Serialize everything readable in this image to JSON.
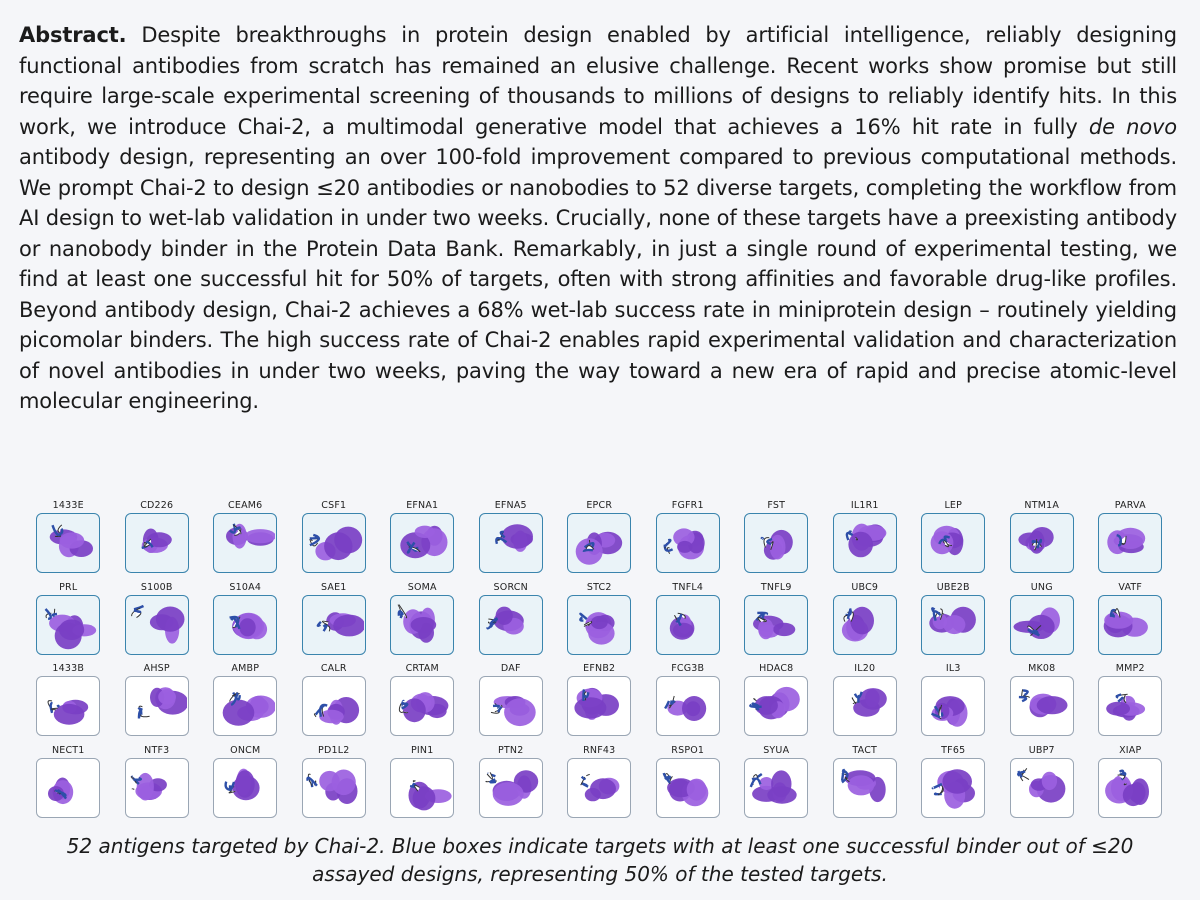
{
  "abstract": {
    "lead": "Abstract.",
    "body": " Despite breakthroughs in protein design enabled by artificial intelligence, reliably designing functional antibodies from scratch has remained an elusive challenge. Recent works show promise but still require large-scale experimental screening of thousands to millions of designs to reliably identify hits. In this work, we introduce Chai-2, a multimodal generative model that achieves a 16% hit rate in fully ",
    "emph": "de novo",
    "body2": " antibody design, representing an over 100-fold improvement compared to previous computational methods. We prompt Chai-2 to design ≤20 antibodies or nanobodies to 52 diverse targets, completing the workflow from AI design to wet-lab validation in under two weeks. Crucially, none of these targets have a preexisting antibody or nanobody binder in the Protein Data Bank. Remarkably, in just a single round of experimental testing, we find at least one successful hit for 50% of targets, often with strong affinities and favorable drug-like profiles. Beyond antibody design, Chai-2 achieves a 68% wet-lab success rate in miniprotein design – routinely yielding picomolar binders. The high success rate of Chai-2 enables rapid experimental validation and characterization of novel antibodies in under two weeks, paving the way toward a new era of rapid and precise atomic-level molecular engineering."
  },
  "targets": [
    {
      "name": "1433E",
      "hit": true
    },
    {
      "name": "CD226",
      "hit": true
    },
    {
      "name": "CEAM6",
      "hit": true
    },
    {
      "name": "CSF1",
      "hit": true
    },
    {
      "name": "EFNA1",
      "hit": true
    },
    {
      "name": "EFNA5",
      "hit": true
    },
    {
      "name": "EPCR",
      "hit": true
    },
    {
      "name": "FGFR1",
      "hit": true
    },
    {
      "name": "FST",
      "hit": true
    },
    {
      "name": "IL1R1",
      "hit": true
    },
    {
      "name": "LEP",
      "hit": true
    },
    {
      "name": "NTM1A",
      "hit": true
    },
    {
      "name": "PARVA",
      "hit": true
    },
    {
      "name": "PRL",
      "hit": true
    },
    {
      "name": "S100B",
      "hit": true
    },
    {
      "name": "S10A4",
      "hit": true
    },
    {
      "name": "SAE1",
      "hit": true
    },
    {
      "name": "SOMA",
      "hit": true
    },
    {
      "name": "SORCN",
      "hit": true
    },
    {
      "name": "STC2",
      "hit": true
    },
    {
      "name": "TNFL4",
      "hit": true
    },
    {
      "name": "TNFL9",
      "hit": true
    },
    {
      "name": "UBC9",
      "hit": true
    },
    {
      "name": "UBE2B",
      "hit": true
    },
    {
      "name": "UNG",
      "hit": true
    },
    {
      "name": "VATF",
      "hit": true
    },
    {
      "name": "1433B",
      "hit": false
    },
    {
      "name": "AHSP",
      "hit": false
    },
    {
      "name": "AMBP",
      "hit": false
    },
    {
      "name": "CALR",
      "hit": false
    },
    {
      "name": "CRTAM",
      "hit": false
    },
    {
      "name": "DAF",
      "hit": false
    },
    {
      "name": "EFNB2",
      "hit": false
    },
    {
      "name": "FCG3B",
      "hit": false
    },
    {
      "name": "HDAC8",
      "hit": false
    },
    {
      "name": "IL20",
      "hit": false
    },
    {
      "name": "IL3",
      "hit": false
    },
    {
      "name": "MK08",
      "hit": false
    },
    {
      "name": "MMP2",
      "hit": false
    },
    {
      "name": "NECT1",
      "hit": false
    },
    {
      "name": "NTF3",
      "hit": false
    },
    {
      "name": "ONCM",
      "hit": false
    },
    {
      "name": "PD1L2",
      "hit": false
    },
    {
      "name": "PIN1",
      "hit": false
    },
    {
      "name": "PTN2",
      "hit": false
    },
    {
      "name": "RNF43",
      "hit": false
    },
    {
      "name": "RSPO1",
      "hit": false
    },
    {
      "name": "SYUA",
      "hit": false
    },
    {
      "name": "TACT",
      "hit": false
    },
    {
      "name": "TF65",
      "hit": false
    },
    {
      "name": "UBP7",
      "hit": false
    },
    {
      "name": "XIAP",
      "hit": false
    }
  ],
  "colors": {
    "antigen": "#9b5fe0",
    "antigen_dark": "#7a3fc4",
    "binder_blue": "#2d4fa8",
    "binder_white": "#ffffff",
    "hit_border": "#3a84ad",
    "miss_border": "#9aa6b4"
  },
  "caption": {
    "line1": "52 antigens targeted by Chai-2. Blue boxes indicate targets with at least one successful binder out of ≤20 assayed designs, representing 50% of the tested targets."
  }
}
